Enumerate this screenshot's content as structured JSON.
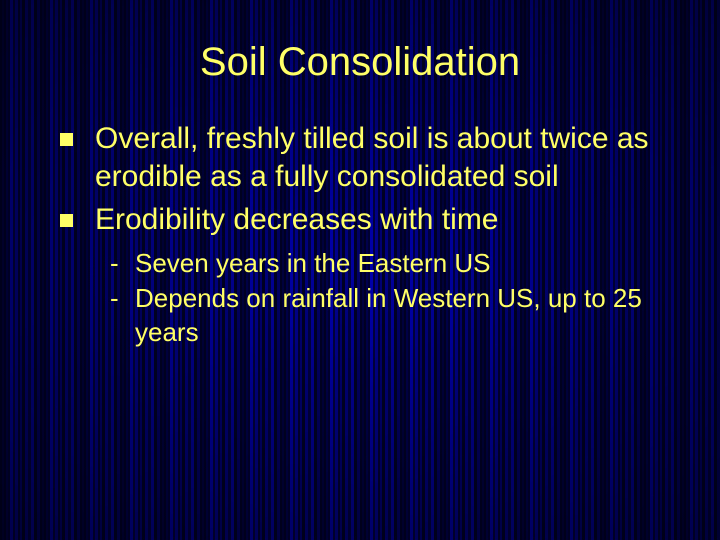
{
  "title": "Soil Consolidation",
  "title_color": "#ffff66",
  "title_fontsize": 40,
  "body_color": "#ffff66",
  "body_fontsize": 30,
  "sub_fontsize": 26,
  "bullet_color": "#ffff66",
  "background_base": "#000033",
  "bullets": [
    {
      "text": "Overall, freshly tilled soil is about twice as erodible as a fully consolidated soil"
    },
    {
      "text": "Erodibility decreases with time"
    }
  ],
  "sub_bullets": [
    {
      "text": "Seven years in the Eastern US"
    },
    {
      "text": "Depends on rainfall in Western US, up to 25 years"
    }
  ]
}
